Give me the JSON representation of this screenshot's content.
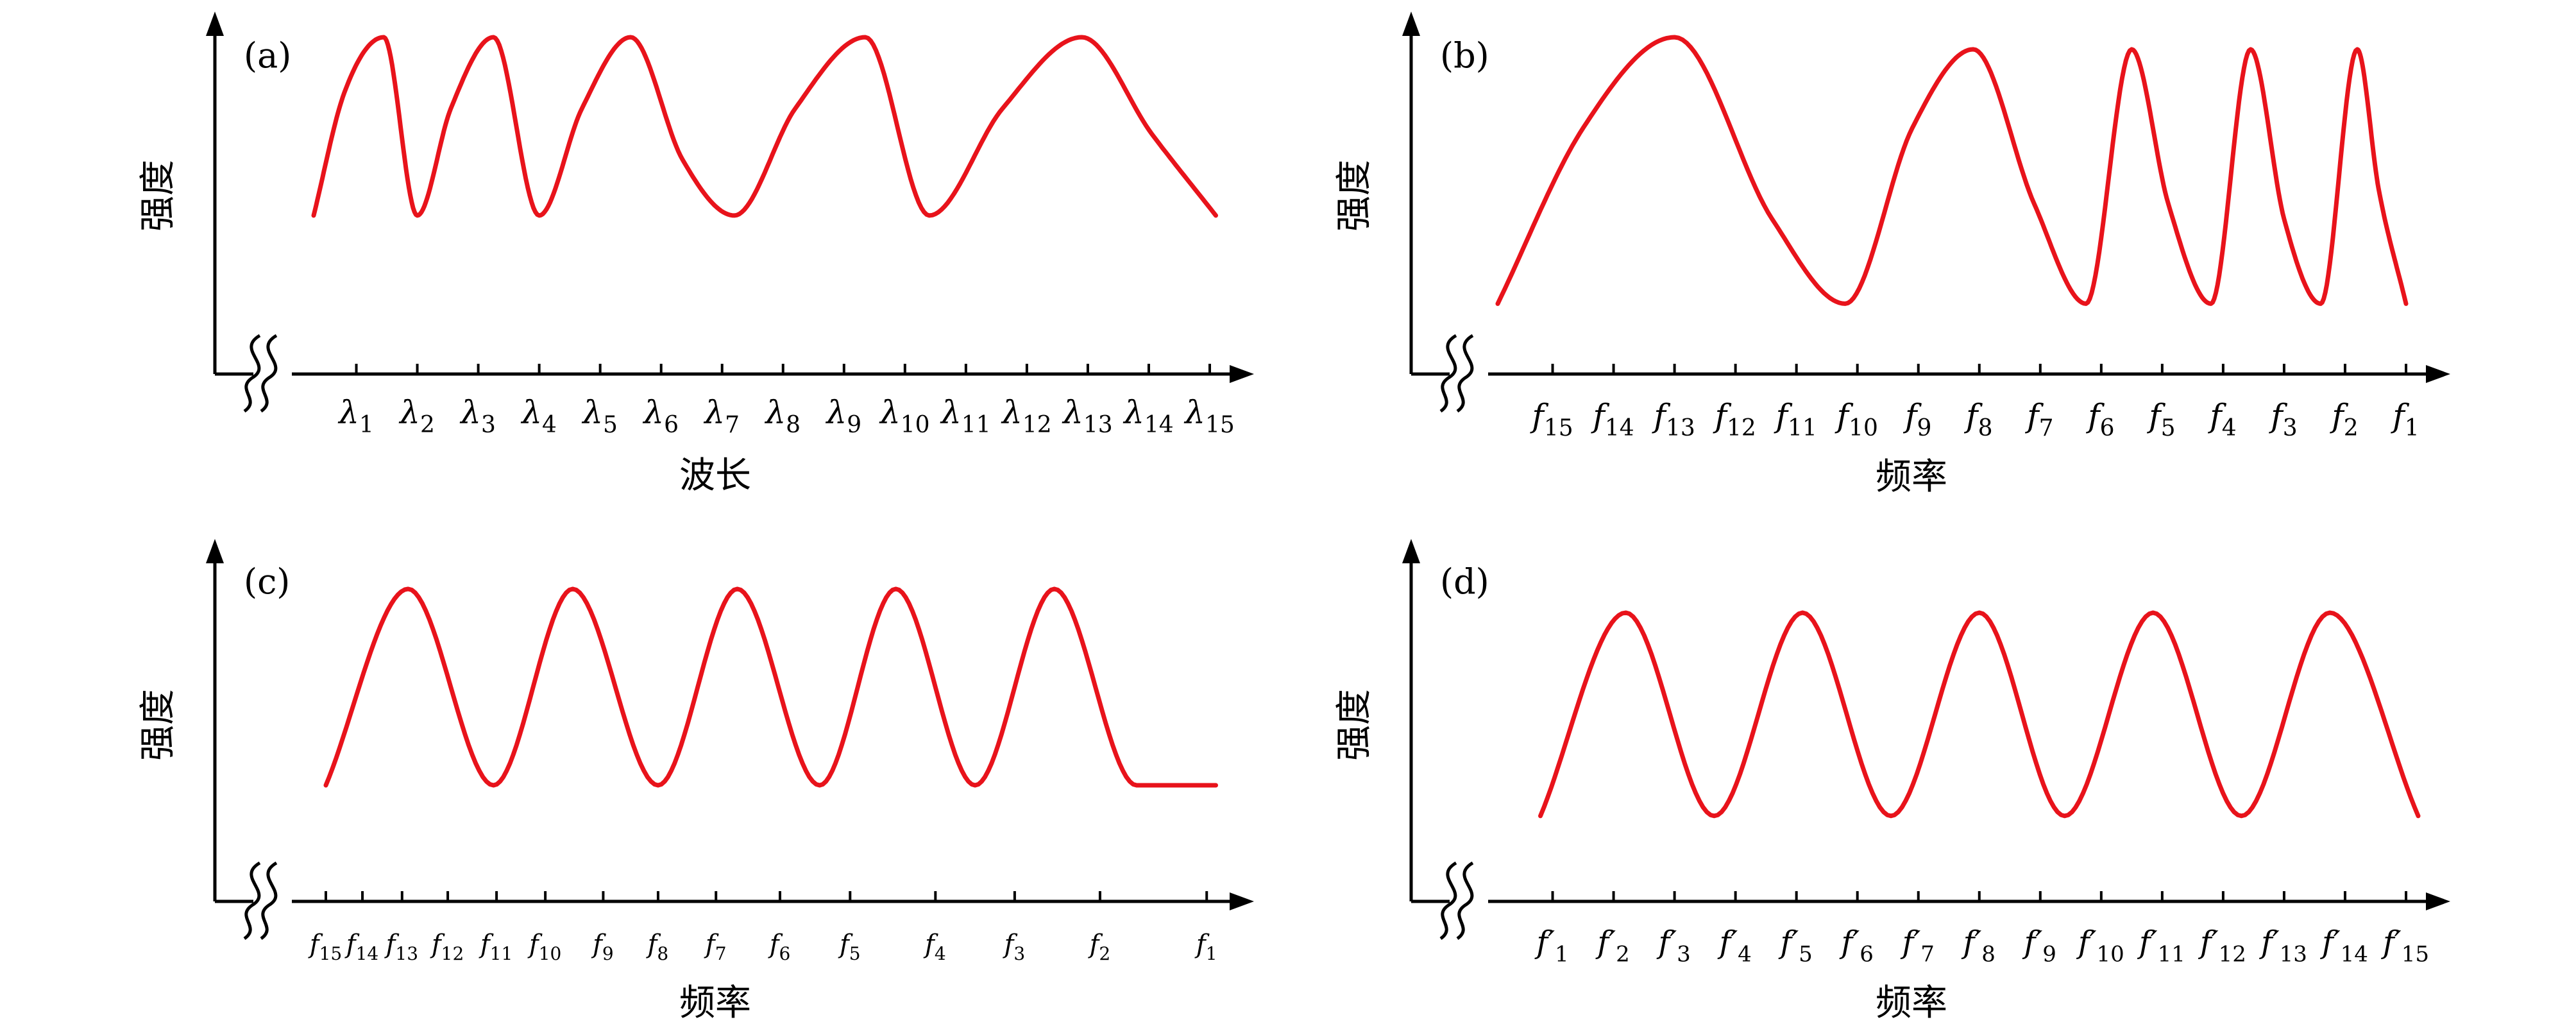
{
  "colors": {
    "curve": "#e8131b",
    "axis": "#000000"
  },
  "chart_data": [
    {
      "type": "line",
      "panel_label": "(a)",
      "ylabel": "强度",
      "xlabel": "波长",
      "axis_break": true,
      "grid": false,
      "legend": "none",
      "tick_labels": [
        {
          "base": "λ",
          "sub": "1"
        },
        {
          "base": "λ",
          "sub": "2"
        },
        {
          "base": "λ",
          "sub": "3"
        },
        {
          "base": "λ",
          "sub": "4"
        },
        {
          "base": "λ",
          "sub": "5"
        },
        {
          "base": "λ",
          "sub": "6"
        },
        {
          "base": "λ",
          "sub": "7"
        },
        {
          "base": "λ",
          "sub": "8"
        },
        {
          "base": "λ",
          "sub": "9"
        },
        {
          "base": "λ",
          "sub": "10"
        },
        {
          "base": "λ",
          "sub": "11"
        },
        {
          "base": "λ",
          "sub": "12"
        },
        {
          "base": "λ",
          "sub": "13"
        },
        {
          "base": "λ",
          "sub": "14"
        },
        {
          "base": "λ",
          "sub": "15"
        }
      ],
      "tick_positions": [
        1,
        2,
        3,
        4,
        5,
        6,
        7,
        8,
        9,
        10,
        11,
        12,
        13,
        14,
        15
      ],
      "xlim": [
        0.1,
        15.2
      ],
      "ylim": [
        0,
        1
      ],
      "series": [
        {
          "x": [
            0.3,
            0.8,
            1.45,
            2.0,
            2.55,
            3.25,
            4.0,
            4.7,
            5.5,
            6.35,
            7.2,
            8.2,
            9.35,
            10.4,
            11.6,
            12.9,
            14.05,
            15.1
          ],
          "y": [
            0.3,
            0.78,
            1.0,
            0.3,
            0.72,
            1.0,
            0.3,
            0.72,
            1.0,
            0.52,
            0.3,
            0.72,
            1.0,
            0.3,
            0.72,
            1.0,
            0.62,
            0.3
          ]
        }
      ]
    },
    {
      "type": "line",
      "panel_label": "(b)",
      "ylabel": "强度",
      "xlabel": "频率",
      "axis_break": true,
      "grid": false,
      "legend": "none",
      "tick_labels": [
        {
          "base": "f",
          "sub": "15"
        },
        {
          "base": "f",
          "sub": "14"
        },
        {
          "base": "f",
          "sub": "13"
        },
        {
          "base": "f",
          "sub": "12"
        },
        {
          "base": "f",
          "sub": "11"
        },
        {
          "base": "f",
          "sub": "10"
        },
        {
          "base": "f",
          "sub": "9"
        },
        {
          "base": "f",
          "sub": "8"
        },
        {
          "base": "f",
          "sub": "7"
        },
        {
          "base": "f",
          "sub": "6"
        },
        {
          "base": "f",
          "sub": "5"
        },
        {
          "base": "f",
          "sub": "4"
        },
        {
          "base": "f",
          "sub": "3"
        },
        {
          "base": "f",
          "sub": "2"
        },
        {
          "base": "f",
          "sub": "1"
        }
      ],
      "tick_positions": [
        1,
        2,
        3,
        4,
        5,
        6,
        7,
        8,
        9,
        10,
        11,
        12,
        13,
        14,
        15
      ],
      "xlim": [
        0.1,
        15.2
      ],
      "ylim": [
        0,
        1
      ],
      "series": [
        {
          "x": [
            0.1,
            1.5,
            3.0,
            4.6,
            5.8,
            6.9,
            7.9,
            8.9,
            9.75,
            10.5,
            11.1,
            11.8,
            12.45,
            13.0,
            13.6,
            14.2,
            14.55,
            15.0
          ],
          "y": [
            0.12,
            0.7,
            1.0,
            0.4,
            0.12,
            0.7,
            0.96,
            0.45,
            0.12,
            0.96,
            0.45,
            0.12,
            0.96,
            0.4,
            0.12,
            0.96,
            0.5,
            0.12
          ]
        }
      ]
    },
    {
      "type": "line",
      "panel_label": "(c)",
      "ylabel": "强度",
      "xlabel": "频率",
      "axis_break": true,
      "grid": false,
      "legend": "none",
      "tick_labels": [
        {
          "base": "f",
          "sub": "15"
        },
        {
          "base": "f",
          "sub": "14"
        },
        {
          "base": "f",
          "sub": "13"
        },
        {
          "base": "f",
          "sub": "12"
        },
        {
          "base": "f",
          "sub": "11"
        },
        {
          "base": "f",
          "sub": "10"
        },
        {
          "base": "f",
          "sub": "9"
        },
        {
          "base": "f",
          "sub": "8"
        },
        {
          "base": "f",
          "sub": "7"
        },
        {
          "base": "f",
          "sub": "6"
        },
        {
          "base": "f",
          "sub": "5"
        },
        {
          "base": "f",
          "sub": "4"
        },
        {
          "base": "f",
          "sub": "3"
        },
        {
          "base": "f",
          "sub": "2"
        },
        {
          "base": "f",
          "sub": "1"
        }
      ],
      "tick_positions": [
        0.5,
        1.1,
        1.75,
        2.5,
        3.3,
        4.1,
        5.05,
        5.95,
        6.9,
        7.95,
        9.1,
        10.5,
        11.8,
        13.2,
        14.95
      ],
      "xlim": [
        0.1,
        15.2
      ],
      "ylim": [
        0,
        1
      ],
      "series": [
        {
          "x": [
            0.5,
            1.85,
            3.25,
            4.55,
            5.95,
            7.25,
            8.6,
            9.85,
            11.15,
            12.45,
            13.8,
            15.1
          ],
          "y": [
            0.15,
            1.0,
            0.15,
            1.0,
            0.15,
            1.0,
            0.15,
            1.0,
            0.15,
            1.0,
            0.15,
            0.15
          ]
        }
      ]
    },
    {
      "type": "line",
      "panel_label": "(d)",
      "ylabel": "强度",
      "xlabel": "频率",
      "axis_break": true,
      "grid": false,
      "legend": "none",
      "tick_labels": [
        {
          "base": "f′",
          "sub": "1"
        },
        {
          "base": "f′",
          "sub": "2"
        },
        {
          "base": "f′",
          "sub": "3"
        },
        {
          "base": "f′",
          "sub": "4"
        },
        {
          "base": "f′",
          "sub": "5"
        },
        {
          "base": "f′",
          "sub": "6"
        },
        {
          "base": "f′",
          "sub": "7"
        },
        {
          "base": "f′",
          "sub": "8"
        },
        {
          "base": "f′",
          "sub": "9"
        },
        {
          "base": "f′",
          "sub": "10"
        },
        {
          "base": "f′",
          "sub": "11"
        },
        {
          "base": "f′",
          "sub": "12"
        },
        {
          "base": "f′",
          "sub": "13"
        },
        {
          "base": "f′",
          "sub": "14"
        },
        {
          "base": "f′",
          "sub": "15"
        }
      ],
      "tick_positions": [
        1,
        2,
        3,
        4,
        5,
        6,
        7,
        8,
        9,
        10,
        11,
        12,
        13,
        14,
        15
      ],
      "xlim": [
        0.1,
        15.2
      ],
      "ylim": [
        0,
        1
      ],
      "series": [
        {
          "x": [
            0.8,
            2.2,
            3.65,
            5.1,
            6.55,
            8.0,
            9.4,
            10.85,
            12.3,
            13.75,
            15.2
          ],
          "y": [
            0.12,
            1.0,
            0.12,
            1.0,
            0.12,
            1.0,
            0.12,
            1.0,
            0.12,
            1.0,
            0.12
          ]
        }
      ]
    }
  ]
}
